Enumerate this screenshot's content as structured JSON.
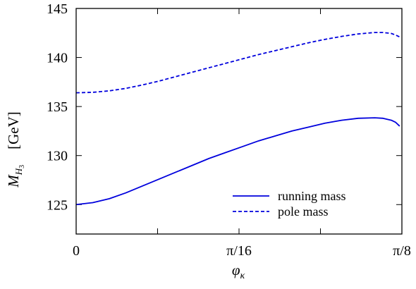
{
  "chart_data": {
    "type": "line",
    "title": "",
    "xlabel": {
      "main": "φ",
      "sub": "κ"
    },
    "ylabel": {
      "main": "M",
      "sub": "H",
      "subsub": "3",
      "unit": "[GeV]"
    },
    "xlim": [
      0,
      0.3927
    ],
    "ylim": [
      122,
      145
    ],
    "x_ticks": [
      {
        "value": 0,
        "label": "0"
      },
      {
        "value": 0.19635,
        "label": "π/16"
      },
      {
        "value": 0.3927,
        "label": "π/8"
      }
    ],
    "x_minor_ticks": [
      0.098175,
      0.294525
    ],
    "y_ticks": [
      {
        "value": 125,
        "label": "125"
      },
      {
        "value": 130,
        "label": "130"
      },
      {
        "value": 135,
        "label": "135"
      },
      {
        "value": 140,
        "label": "140"
      },
      {
        "value": 145,
        "label": "145"
      }
    ],
    "grid": false,
    "legend_position": "bottom-right",
    "series": [
      {
        "name": "running mass",
        "color": "#0000dd",
        "style": "solid",
        "x": [
          0,
          0.02,
          0.04,
          0.06,
          0.08,
          0.1,
          0.12,
          0.14,
          0.16,
          0.18,
          0.2,
          0.22,
          0.24,
          0.26,
          0.28,
          0.3,
          0.32,
          0.34,
          0.36,
          0.37,
          0.38,
          0.385,
          0.39
        ],
        "y": [
          125.0,
          125.2,
          125.6,
          126.2,
          126.9,
          127.6,
          128.3,
          129.0,
          129.7,
          130.3,
          130.9,
          131.5,
          132.0,
          132.5,
          132.9,
          133.3,
          133.6,
          133.8,
          133.85,
          133.8,
          133.6,
          133.4,
          133.0
        ]
      },
      {
        "name": "pole mass",
        "color": "#0000dd",
        "style": "dashed",
        "x": [
          0,
          0.02,
          0.04,
          0.06,
          0.08,
          0.1,
          0.12,
          0.14,
          0.16,
          0.18,
          0.2,
          0.22,
          0.24,
          0.26,
          0.28,
          0.3,
          0.32,
          0.34,
          0.36,
          0.37,
          0.38,
          0.385,
          0.39
        ],
        "y": [
          136.4,
          136.45,
          136.6,
          136.85,
          137.2,
          137.6,
          138.05,
          138.5,
          138.95,
          139.4,
          139.85,
          140.3,
          140.7,
          141.1,
          141.5,
          141.85,
          142.15,
          142.4,
          142.55,
          142.55,
          142.45,
          142.3,
          142.1
        ]
      }
    ]
  }
}
